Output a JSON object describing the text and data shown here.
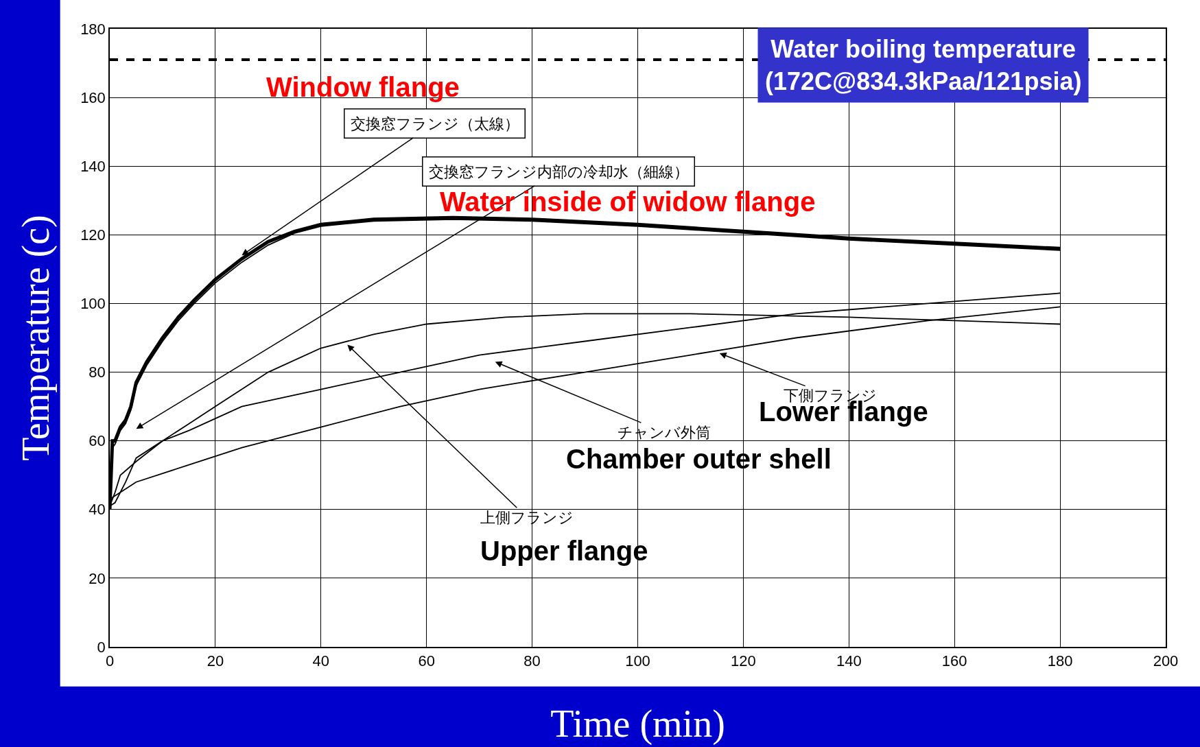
{
  "chart_data": {
    "type": "line",
    "xlabel": "Time (min)",
    "ylabel": "Temperature (c)",
    "xlim": [
      0,
      200
    ],
    "xticks": [
      0,
      20,
      40,
      60,
      80,
      100,
      120,
      140,
      160,
      180,
      200
    ],
    "ylim": [
      0,
      180
    ],
    "yticks": [
      0,
      20,
      40,
      60,
      80,
      100,
      120,
      140,
      160,
      180
    ],
    "grid": true,
    "marker": "none",
    "line_style": "solid",
    "series": [
      {
        "color": "#000000",
        "x": [
          0,
          0.5,
          1,
          2,
          3,
          4,
          5,
          7,
          10,
          13,
          16,
          20,
          25,
          30,
          35,
          40,
          50,
          65,
          80,
          100,
          120,
          140,
          160,
          180
        ],
        "values": [
          40,
          60,
          60,
          64,
          66,
          70,
          77,
          83,
          90,
          96,
          101,
          107,
          113,
          118,
          121,
          123,
          124.5,
          125,
          124.5,
          123,
          121,
          119,
          117.5,
          116
        ]
      },
      {
        "color": "#000000",
        "x": [
          0,
          0.5,
          1,
          2,
          3,
          4,
          5,
          7,
          10,
          13,
          16,
          20,
          25,
          30,
          35,
          40,
          50,
          65,
          80,
          100,
          120,
          140,
          160,
          180
        ],
        "values": [
          40,
          58,
          59,
          63,
          65,
          69,
          76,
          82,
          89,
          95,
          100,
          106,
          112,
          117,
          120.5,
          122.5,
          124,
          124.5,
          124,
          122.5,
          120.5,
          118.5,
          117,
          115.5
        ]
      },
      {
        "color": "#000000",
        "x": [
          0,
          1,
          2,
          5,
          10,
          15,
          20,
          30,
          40,
          50,
          60,
          75,
          90,
          110,
          140,
          160,
          180
        ],
        "values": [
          41,
          45,
          50,
          54,
          60,
          65,
          70,
          80,
          87,
          91,
          94,
          96,
          97,
          97,
          96,
          95,
          94
        ]
      },
      {
        "color": "#000000",
        "x": [
          0,
          1,
          3,
          5,
          10,
          15,
          25,
          40,
          55,
          70,
          90,
          110,
          130,
          155,
          180
        ],
        "values": [
          41,
          42,
          48,
          55,
          60,
          63,
          70,
          75,
          80,
          85,
          89,
          93,
          97,
          100,
          103
        ]
      },
      {
        "color": "#000000",
        "x": [
          0,
          1,
          5,
          15,
          25,
          40,
          55,
          70,
          90,
          110,
          130,
          155,
          180
        ],
        "values": [
          43,
          44,
          48,
          53,
          58,
          64,
          70,
          75,
          80,
          85,
          90,
          95,
          99
        ]
      }
    ],
    "ref_lines": [
      {
        "axis": "y",
        "value": 171,
        "label": "Water boiling temperature\n(172C@834.3kPaa/121psia)",
        "color": "#000000",
        "line_style": "dashed"
      }
    ],
    "annotations": [
      "Window flange",
      {
        "text": "交換窓フランジ（太線）",
        "x": 25,
        "y": 114
      },
      "交換窓フランジ内部の冷却水（細線）",
      "Water inside of widow flange",
      {
        "text": "上側フランジ",
        "x": 45,
        "y": 88
      },
      "Upper flange",
      "チャンバ外筒",
      "Chamber outer shell",
      {
        "text": "下側フランジ",
        "x": 115.5,
        "y": 85.5
      },
      "Lower flange"
    ]
  }
}
